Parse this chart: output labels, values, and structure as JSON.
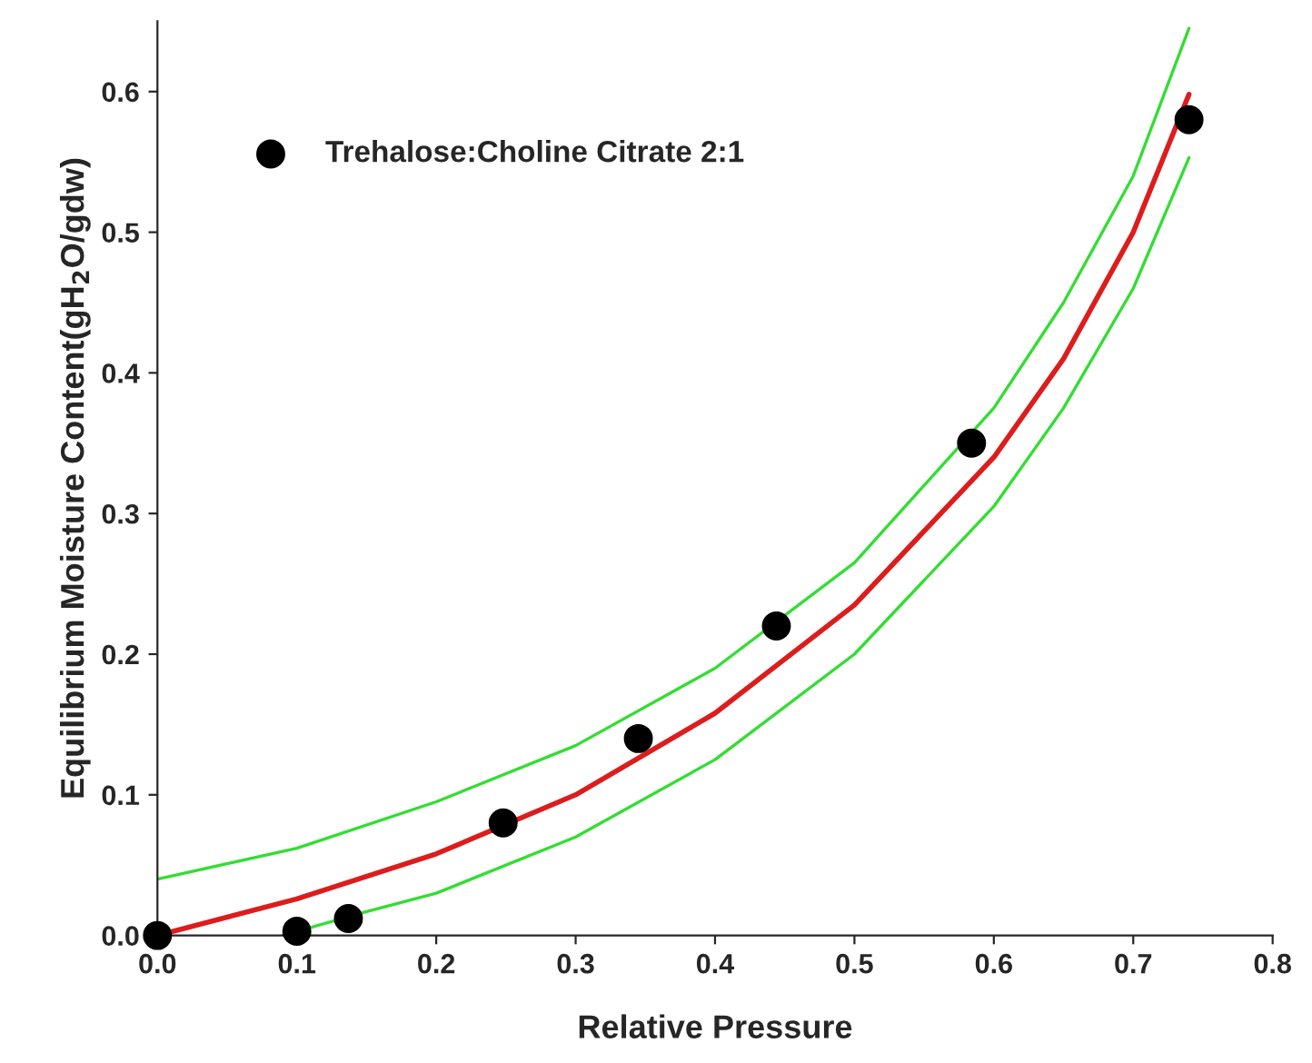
{
  "chart_data": {
    "type": "line",
    "xlabel": "Relative Pressure",
    "ylabel": "Equilibrium Moisture Content(gH$_{2}$O/gdw)",
    "xlim": [
      0,
      0.8
    ],
    "ylim": [
      0,
      0.65
    ],
    "xticks": [
      {
        "value": 0,
        "label": "0.0"
      },
      {
        "value": 0.1,
        "label": "0.1"
      },
      {
        "value": 0.2,
        "label": "0.2"
      },
      {
        "value": 0.3,
        "label": "0.3"
      },
      {
        "value": 0.4,
        "label": "0.4"
      },
      {
        "value": 0.5,
        "label": "0.5"
      },
      {
        "value": 0.6,
        "label": "0.6"
      },
      {
        "value": 0.7,
        "label": "0.7"
      },
      {
        "value": 0.8,
        "label": "0.8"
      }
    ],
    "yticks": [
      {
        "value": 0,
        "label": "0.0"
      },
      {
        "value": 0.1,
        "label": "0.1"
      },
      {
        "value": 0.2,
        "label": "0.2"
      },
      {
        "value": 0.3,
        "label": "0.3"
      },
      {
        "value": 0.4,
        "label": "0.4"
      },
      {
        "value": 0.5,
        "label": "0.5"
      },
      {
        "value": 0.6,
        "label": "0.6"
      }
    ],
    "grid": false,
    "legend": "top left",
    "series": [
      {
        "name": "Trehalose:Choline Citrate 2:1",
        "type": "scatter",
        "marker": "circle",
        "color": "#000000",
        "x": [
          0,
          0.1,
          0.137,
          0.248,
          0.345,
          0.444,
          0.584,
          0.74
        ],
        "values": [
          0,
          0.003,
          0.012,
          0.08,
          0.14,
          0.22,
          0.35,
          0.58
        ]
      },
      {
        "color": "#dd1c1c",
        "x": [
          0,
          0.1,
          0.2,
          0.3,
          0.4,
          0.5,
          0.6,
          0.65,
          0.7,
          0.74
        ],
        "values": [
          0,
          0.026,
          0.058,
          0.1,
          0.158,
          0.235,
          0.34,
          0.41,
          0.5,
          0.598
        ]
      },
      {
        "color": "#33dd33",
        "x": [
          0,
          0.1,
          0.2,
          0.3,
          0.4,
          0.5,
          0.6,
          0.65,
          0.7,
          0.74
        ],
        "values": [
          0.04,
          0.062,
          0.095,
          0.135,
          0.19,
          0.265,
          0.375,
          0.45,
          0.54,
          0.645
        ]
      },
      {
        "color": "#33dd33",
        "x": [
          0.09,
          0.15,
          0.2,
          0.3,
          0.4,
          0.5,
          0.6,
          0.65,
          0.7,
          0.74
        ],
        "values": [
          0,
          0.017,
          0.03,
          0.07,
          0.125,
          0.2,
          0.305,
          0.375,
          0.46,
          0.553
        ]
      }
    ]
  }
}
